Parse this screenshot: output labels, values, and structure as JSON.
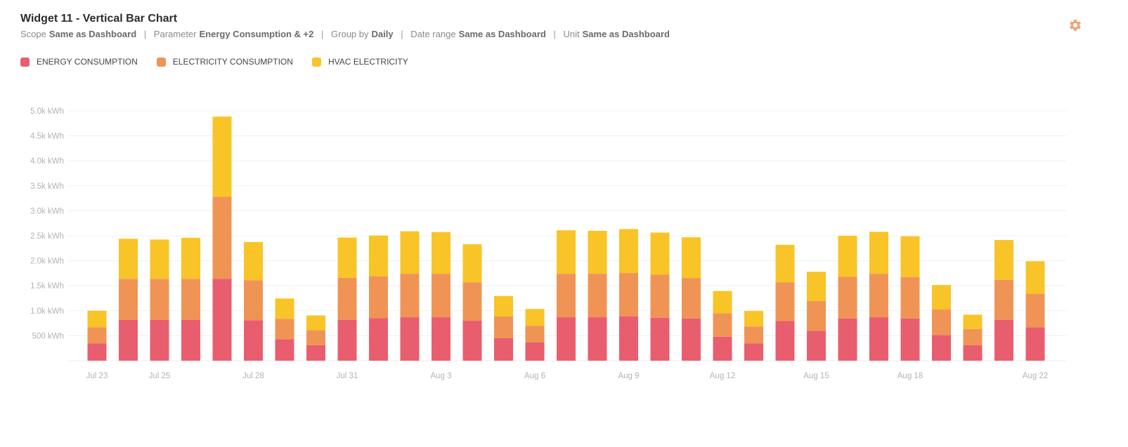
{
  "widget": {
    "title": "Widget 11 - Vertical Bar Chart",
    "meta": [
      {
        "label": "Scope",
        "value": "Same as Dashboard"
      },
      {
        "label": "Parameter",
        "value": "Energy Consumption & +2"
      },
      {
        "label": "Group by",
        "value": "Daily"
      },
      {
        "label": "Date range",
        "value": "Same as Dashboard"
      },
      {
        "label": "Unit",
        "value": "Same as Dashboard"
      }
    ],
    "settings_icon": "gear-icon"
  },
  "colors": {
    "energy": "#e95e6e",
    "electricity": "#f09456",
    "hvac": "#f8c427",
    "settings": "#f0a47a"
  },
  "chart_data": {
    "type": "bar",
    "stacked": true,
    "unit": "kWh",
    "categories": [
      "Jul 23",
      "Jul 24",
      "Jul 25",
      "Jul 26",
      "Jul 27",
      "Jul 28",
      "Jul 29",
      "Jul 30",
      "Jul 31",
      "Aug 1",
      "Aug 2",
      "Aug 3",
      "Aug 4",
      "Aug 5",
      "Aug 6",
      "Aug 7",
      "Aug 8",
      "Aug 9",
      "Aug 10",
      "Aug 11",
      "Aug 12",
      "Aug 13",
      "Aug 14",
      "Aug 15",
      "Aug 16",
      "Aug 17",
      "Aug 18",
      "Aug 19",
      "Aug 20",
      "Aug 21",
      "Aug 22"
    ],
    "x_tick_labels": [
      {
        "index": 0,
        "label": "Jul 23"
      },
      {
        "index": 2,
        "label": "Jul 25"
      },
      {
        "index": 5,
        "label": "Jul 28"
      },
      {
        "index": 8,
        "label": "Jul 31"
      },
      {
        "index": 11,
        "label": "Aug 3"
      },
      {
        "index": 14,
        "label": "Aug 6"
      },
      {
        "index": 17,
        "label": "Aug 9"
      },
      {
        "index": 20,
        "label": "Aug 12"
      },
      {
        "index": 23,
        "label": "Aug 15"
      },
      {
        "index": 26,
        "label": "Aug 18"
      },
      {
        "index": 30,
        "label": "Aug 22"
      }
    ],
    "y_ticks": [
      {
        "value": 500,
        "label": "500 kWh"
      },
      {
        "value": 1000,
        "label": "1.0k kWh"
      },
      {
        "value": 1500,
        "label": "1.5k kWh"
      },
      {
        "value": 2000,
        "label": "2.0k kWh"
      },
      {
        "value": 2500,
        "label": "2.5k kWh"
      },
      {
        "value": 3000,
        "label": "3.0k kWh"
      },
      {
        "value": 3500,
        "label": "3.5k kWh"
      },
      {
        "value": 4000,
        "label": "4.0k kWh"
      },
      {
        "value": 4500,
        "label": "4.5k kWh"
      },
      {
        "value": 5000,
        "label": "5.0k kWh"
      }
    ],
    "ylim": [
      0,
      5000
    ],
    "grid": true,
    "legend_position": "top-left",
    "series": [
      {
        "name": "ENERGY CONSUMPTION",
        "color_key": "energy",
        "values": [
          345,
          820,
          820,
          820,
          1640,
          810,
          430,
          310,
          820,
          850,
          870,
          870,
          800,
          450,
          365,
          870,
          870,
          890,
          860,
          845,
          480,
          345,
          795,
          600,
          845,
          870,
          845,
          515,
          310,
          820,
          670
        ]
      },
      {
        "name": "ELECTRICITY CONSUMPTION",
        "color_key": "electricity",
        "values": [
          325,
          820,
          820,
          820,
          1640,
          800,
          410,
          300,
          840,
          840,
          870,
          870,
          770,
          435,
          335,
          870,
          870,
          865,
          860,
          810,
          470,
          340,
          775,
          595,
          835,
          870,
          830,
          510,
          325,
          800,
          670
        ]
      },
      {
        "name": "HVAC ELECTRICITY",
        "color_key": "hvac",
        "values": [
          330,
          800,
          785,
          820,
          1605,
          765,
          405,
          295,
          805,
          815,
          850,
          835,
          760,
          410,
          335,
          870,
          860,
          880,
          845,
          815,
          445,
          310,
          750,
          585,
          820,
          840,
          815,
          490,
          285,
          795,
          650
        ]
      }
    ]
  }
}
